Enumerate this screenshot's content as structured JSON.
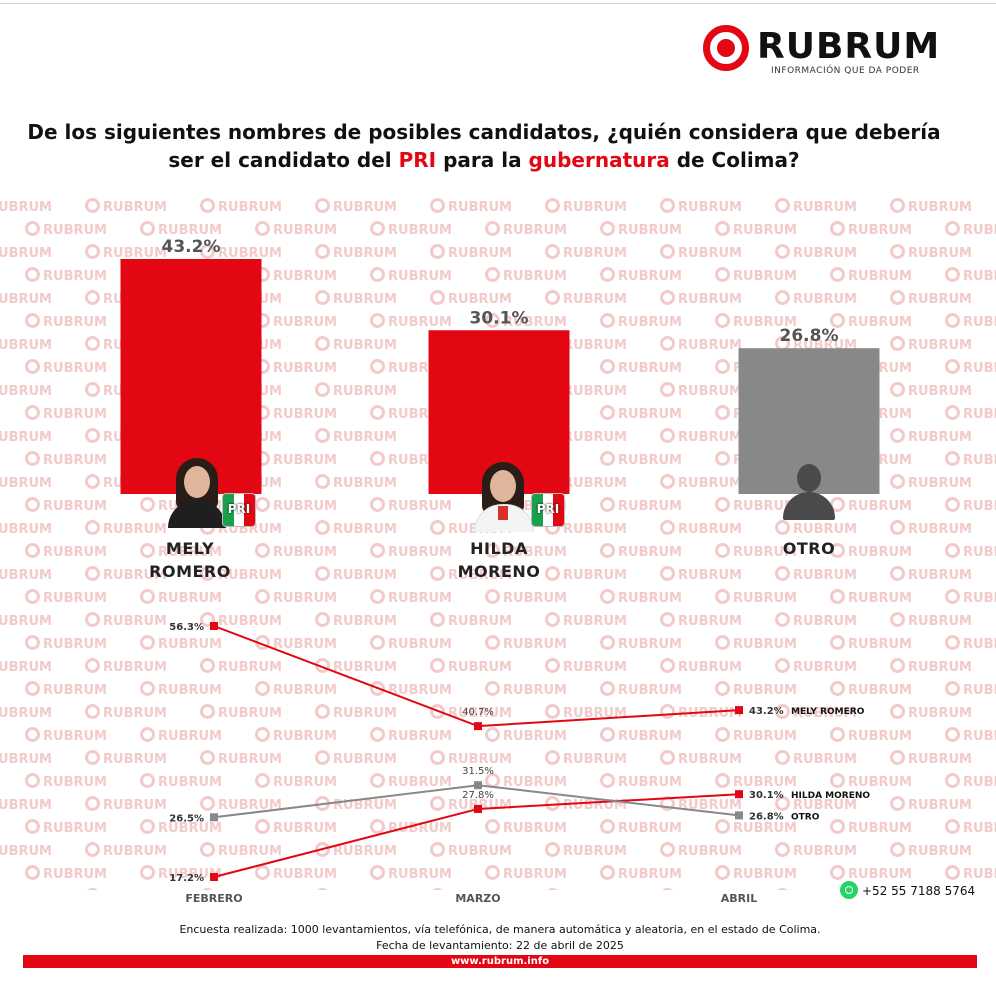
{
  "brand": {
    "name": "RUBRUM",
    "tagline": "INFORMACIÓN QUE DA PODER",
    "watermark": "RUBRUM",
    "accent": "#e30613",
    "gray": "#888888"
  },
  "question": {
    "part1": "De los siguientes nombres de posibles candidatos, ¿quién considera que debería",
    "part2": "ser el candidato del ",
    "hl1": "PRI",
    "part3": " para la ",
    "hl2": "gubernatura",
    "part4": " de Colima?"
  },
  "candidates": [
    {
      "line1": "MELY",
      "line2": "ROMERO"
    },
    {
      "line1": "HILDA",
      "line2": "MORENO"
    },
    {
      "line1": "OTRO",
      "line2": ""
    }
  ],
  "party_logo_text": "PRI",
  "chart_data": [
    {
      "type": "bar",
      "categories": [
        "MELY ROMERO",
        "HILDA MORENO",
        "OTRO"
      ],
      "values": [
        43.2,
        30.1,
        26.8
      ],
      "value_labels": [
        "43.2%",
        "30.1%",
        "26.8%"
      ],
      "colors": [
        "#e30613",
        "#e30613",
        "#888888"
      ],
      "ylim": [
        0,
        45
      ]
    },
    {
      "type": "line",
      "x": [
        "FEBRERO",
        "MARZO",
        "ABRIL"
      ],
      "ylim": [
        15,
        58
      ],
      "series": [
        {
          "name": "MELY ROMERO",
          "color": "#e30613",
          "values": [
            56.3,
            40.7,
            43.2
          ],
          "labels": [
            "56.3%",
            "40.7%",
            "43.2%"
          ]
        },
        {
          "name": "HILDA MORENO",
          "color": "#e30613",
          "values": [
            17.2,
            27.8,
            30.1
          ],
          "labels": [
            "17.2%",
            "27.8%",
            "30.1%"
          ]
        },
        {
          "name": "OTRO",
          "color": "#888888",
          "values": [
            26.5,
            31.5,
            26.8
          ],
          "labels": [
            "26.5%",
            "31.5%",
            "26.8%"
          ]
        }
      ]
    }
  ],
  "contact": {
    "whatsapp": "+52 55 7188 5764"
  },
  "footer": {
    "line1": "Encuesta realizada: 1000 levantamientos, vía telefónica, de manera automática y aleatoria, en el estado de Colima.",
    "line2": "Fecha de levantamiento: 22 de abril de 2025",
    "url": "www.rubrum.info"
  }
}
